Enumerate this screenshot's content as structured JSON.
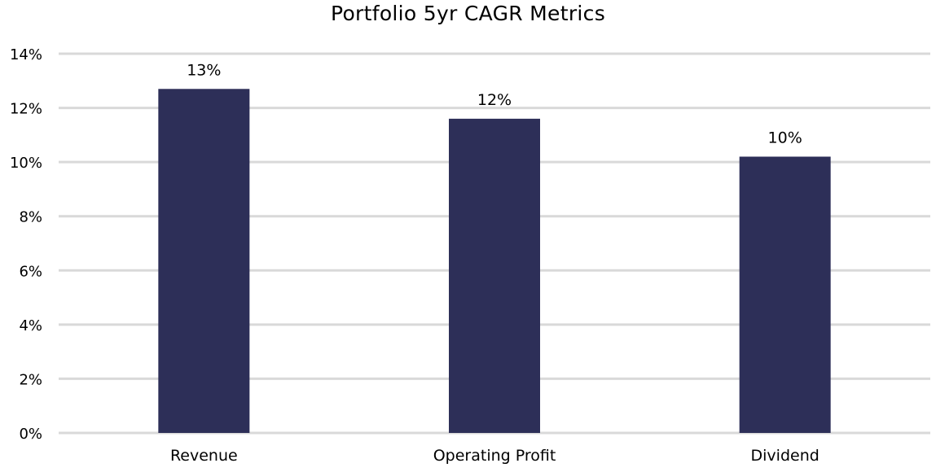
{
  "chart_data": {
    "type": "bar",
    "title": "Portfolio 5yr CAGR Metrics",
    "xlabel": "",
    "ylabel": "",
    "categories": [
      "Revenue",
      "Operating Profit",
      "Dividend"
    ],
    "values": [
      12.7,
      11.6,
      10.2
    ],
    "data_labels": [
      "13%",
      "12%",
      "10%"
    ],
    "ylim": [
      0,
      14
    ],
    "yticks": [
      0,
      2,
      4,
      6,
      8,
      10,
      12,
      14
    ],
    "ytick_labels": [
      "0%",
      "2%",
      "4%",
      "6%",
      "8%",
      "10%",
      "12%",
      "14%"
    ],
    "grid": true,
    "legend": "none",
    "colors": {
      "bar": "#2d2f58",
      "grid": "#d9d9d9"
    }
  }
}
